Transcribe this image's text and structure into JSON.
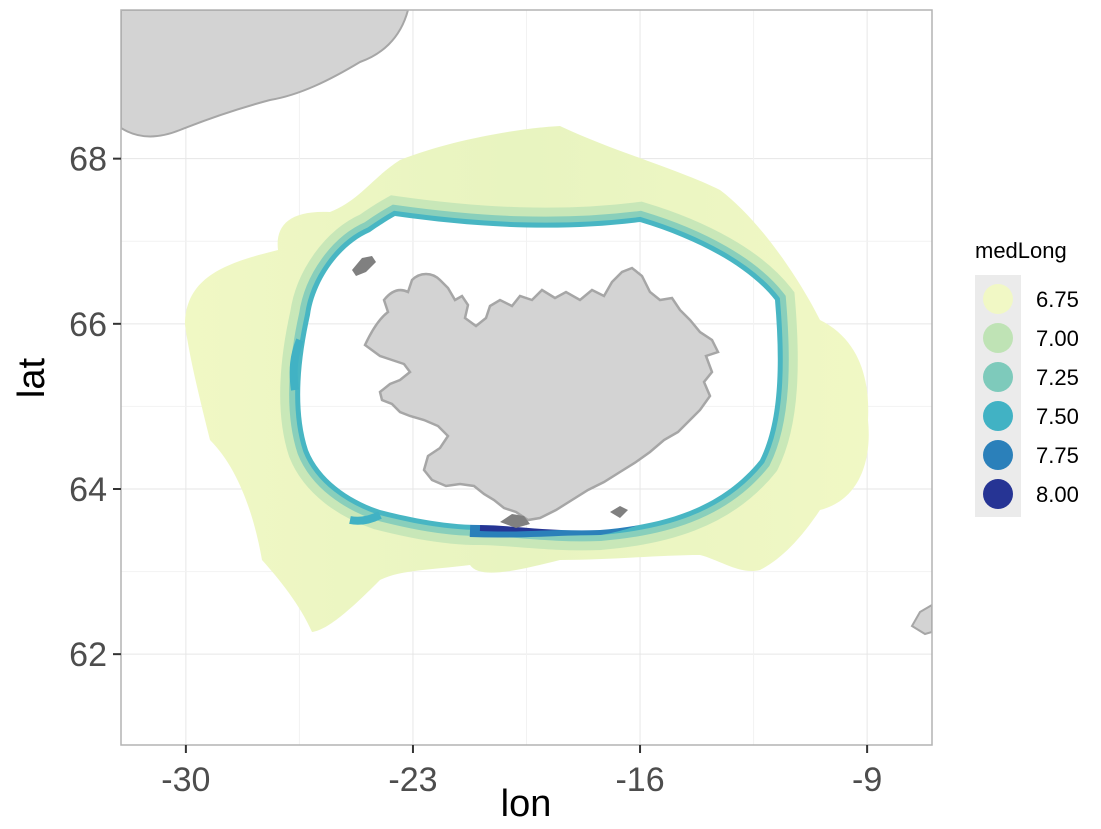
{
  "map": {
    "x_axis": {
      "title": "lon",
      "ticks": [
        -30,
        -23,
        -16,
        -9
      ],
      "range": [
        -32,
        -7
      ]
    },
    "y_axis": {
      "title": "lat",
      "ticks": [
        62,
        64,
        66,
        68
      ],
      "range": [
        60.9,
        69.8
      ]
    },
    "land_color": "#d3d3d3",
    "land_outline_color": "#a6a6a6",
    "grid": true
  },
  "legend": {
    "title": "medLong",
    "entries": [
      {
        "label": "6.75",
        "color": "#f1f8c5"
      },
      {
        "label": "7.00",
        "color": "#bfe3b5"
      },
      {
        "label": "7.25",
        "color": "#7ecabb"
      },
      {
        "label": "7.50",
        "color": "#41b2c4"
      },
      {
        "label": "7.75",
        "color": "#2b80ba"
      },
      {
        "label": "8.00",
        "color": "#263494"
      }
    ]
  }
}
